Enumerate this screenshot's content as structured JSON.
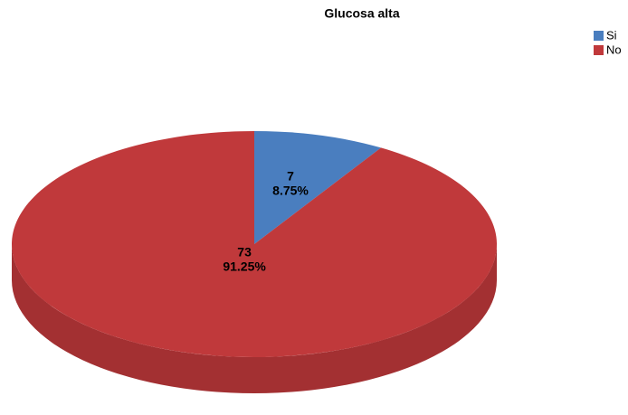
{
  "chart_data": {
    "type": "pie",
    "title": "Glucosa alta",
    "categories": [
      "Si",
      "No"
    ],
    "values": [
      7,
      73
    ],
    "percentages": [
      8.75,
      91.25
    ],
    "percentage_labels": [
      "8.75%",
      "91.25%"
    ],
    "colors": [
      "#4a7ebf",
      "#c0393b"
    ],
    "legend": "top-right"
  }
}
